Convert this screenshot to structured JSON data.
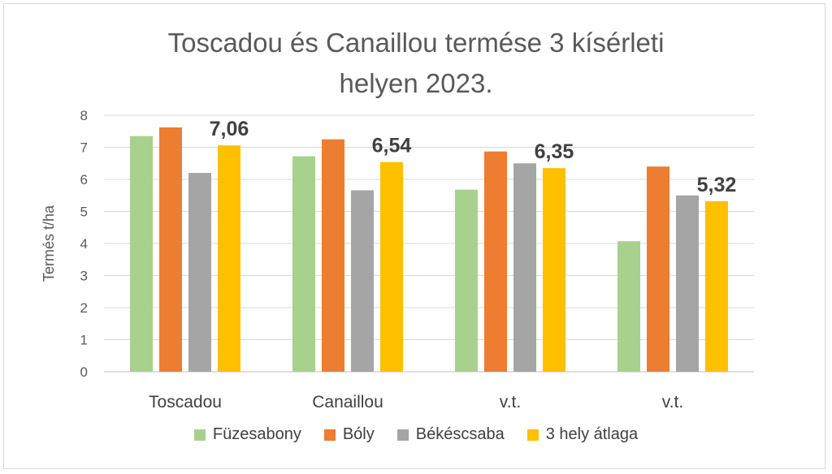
{
  "chart_data": {
    "type": "bar",
    "title": "Toscadou és Canaillou termése 3 kísérleti helyen 2023.",
    "title_lines": [
      "Toscadou és Canaillou termése 3 kísérleti",
      "helyen 2023."
    ],
    "xlabel": "",
    "ylabel": "Termés t/ha",
    "ylim": [
      0,
      8
    ],
    "yticks": [
      0,
      1,
      2,
      3,
      4,
      5,
      6,
      7,
      8
    ],
    "grid": true,
    "legend_position": "bottom",
    "categories": [
      "Toscadou",
      "Canaillou",
      "v.t.",
      "v.t."
    ],
    "series": [
      {
        "name": "Füzesabony",
        "color": "#a9d18e",
        "values": [
          7.35,
          6.72,
          5.68,
          4.07
        ]
      },
      {
        "name": "Bóly",
        "color": "#ed7d31",
        "values": [
          7.62,
          7.25,
          6.87,
          6.4
        ]
      },
      {
        "name": "Békéscsaba",
        "color": "#a5a5a5",
        "values": [
          6.2,
          5.66,
          6.5,
          5.5
        ]
      },
      {
        "name": "3 hely átlaga",
        "color": "#ffc000",
        "values": [
          7.06,
          6.54,
          6.35,
          5.32
        ],
        "data_labels": [
          "7,06",
          "6,54",
          "6,35",
          "5,32"
        ]
      }
    ]
  }
}
